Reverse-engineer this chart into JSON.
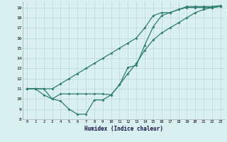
{
  "xlabel": "Humidex (Indice chaleur)",
  "line_color": "#2e7d6e",
  "background_color": "#daf0f0",
  "grid_color": "#b8d8d8",
  "xlim": [
    -0.5,
    23.5
  ],
  "ylim": [
    8,
    19.6
  ],
  "yticks": [
    8,
    9,
    10,
    11,
    12,
    13,
    14,
    15,
    16,
    17,
    18,
    19
  ],
  "xticks": [
    0,
    1,
    2,
    3,
    4,
    5,
    6,
    7,
    8,
    9,
    10,
    11,
    12,
    13,
    14,
    15,
    16,
    17,
    18,
    19,
    20,
    21,
    22,
    23
  ],
  "line1_x": [
    0,
    1,
    2,
    3,
    4,
    5,
    6,
    7,
    8,
    9,
    10,
    11,
    12,
    13,
    14,
    15,
    16,
    17,
    18,
    19,
    20,
    21,
    22,
    23
  ],
  "line1_y": [
    11,
    11,
    11,
    11,
    11.5,
    12.0,
    12.5,
    13.0,
    13.5,
    14.0,
    14.5,
    15.0,
    15.5,
    16.0,
    17.0,
    18.2,
    18.5,
    18.5,
    18.8,
    19.0,
    19.0,
    19.0,
    19.0,
    19.1
  ],
  "line2_x": [
    0,
    1,
    2,
    3,
    4,
    5,
    6,
    7,
    8,
    9,
    10,
    11,
    12,
    13,
    14,
    15,
    16,
    17,
    18,
    19,
    20,
    21,
    22,
    23
  ],
  "line2_y": [
    11,
    11,
    10.4,
    10.0,
    9.8,
    9.0,
    8.5,
    8.5,
    9.9,
    9.9,
    10.4,
    11.4,
    13.1,
    13.3,
    15.3,
    17.1,
    18.2,
    18.5,
    18.8,
    19.1,
    19.1,
    19.1,
    19.1,
    19.2
  ],
  "line3_x": [
    0,
    1,
    2,
    3,
    4,
    5,
    6,
    7,
    8,
    9,
    10,
    11,
    12,
    13,
    14,
    15,
    16,
    17,
    18,
    19,
    20,
    21,
    22,
    23
  ],
  "line3_y": [
    11,
    11,
    11,
    10.0,
    10.5,
    10.5,
    10.5,
    10.5,
    10.5,
    10.5,
    10.4,
    11.4,
    12.5,
    13.5,
    14.8,
    15.8,
    16.5,
    17.0,
    17.5,
    18.0,
    18.5,
    18.8,
    19.0,
    19.1
  ]
}
